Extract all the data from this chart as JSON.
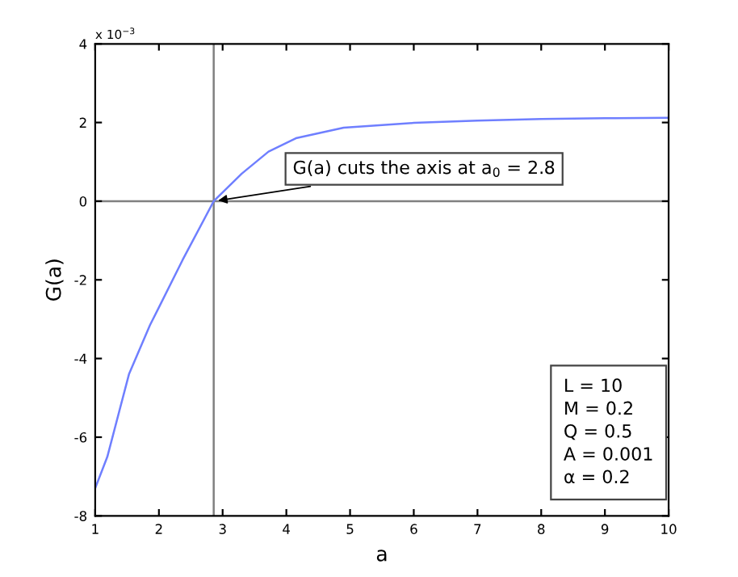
{
  "chart_data": {
    "type": "line",
    "xlabel": "a",
    "ylabel": "G(a)",
    "x": [
      1,
      1.19,
      1.53,
      1.86,
      2,
      2.37,
      2.86,
      3.3,
      3.72,
      4.15,
      4.9,
      6,
      7,
      8,
      9,
      10
    ],
    "series": [
      {
        "color": "#6f7fff",
        "values": [
          -7.3,
          -6.5,
          -4.4,
          -3.15,
          -2.7,
          -1.5,
          0,
          0.7,
          1.26,
          1.6,
          1.87,
          1.99,
          2.05,
          2.09,
          2.11,
          2.12
        ]
      }
    ],
    "xlim": [
      1,
      10
    ],
    "xticks": [
      1,
      2,
      3,
      4,
      5,
      6,
      7,
      8,
      9,
      10
    ],
    "ylim": [
      -8,
      4
    ],
    "yticks": [
      -8,
      -6,
      -4,
      -2,
      0,
      2,
      4
    ],
    "ref_lines": [
      {
        "axis": "x",
        "value": 2.86,
        "color": "#808080"
      },
      {
        "axis": "y",
        "value": 0,
        "color": "#808080"
      }
    ],
    "annotations": [
      "x 10$^{−3}$",
      {
        "text": "G(a) cuts the axis at a$_{0}$ = 2.8",
        "x": 2.86,
        "y": 0
      },
      "L = 10\nM = 0.2\nQ = 0.5\nA = 0.001\nα = 0.2"
    ],
    "grid": false,
    "legend": false,
    "marker": "none",
    "line_style": "solid"
  }
}
